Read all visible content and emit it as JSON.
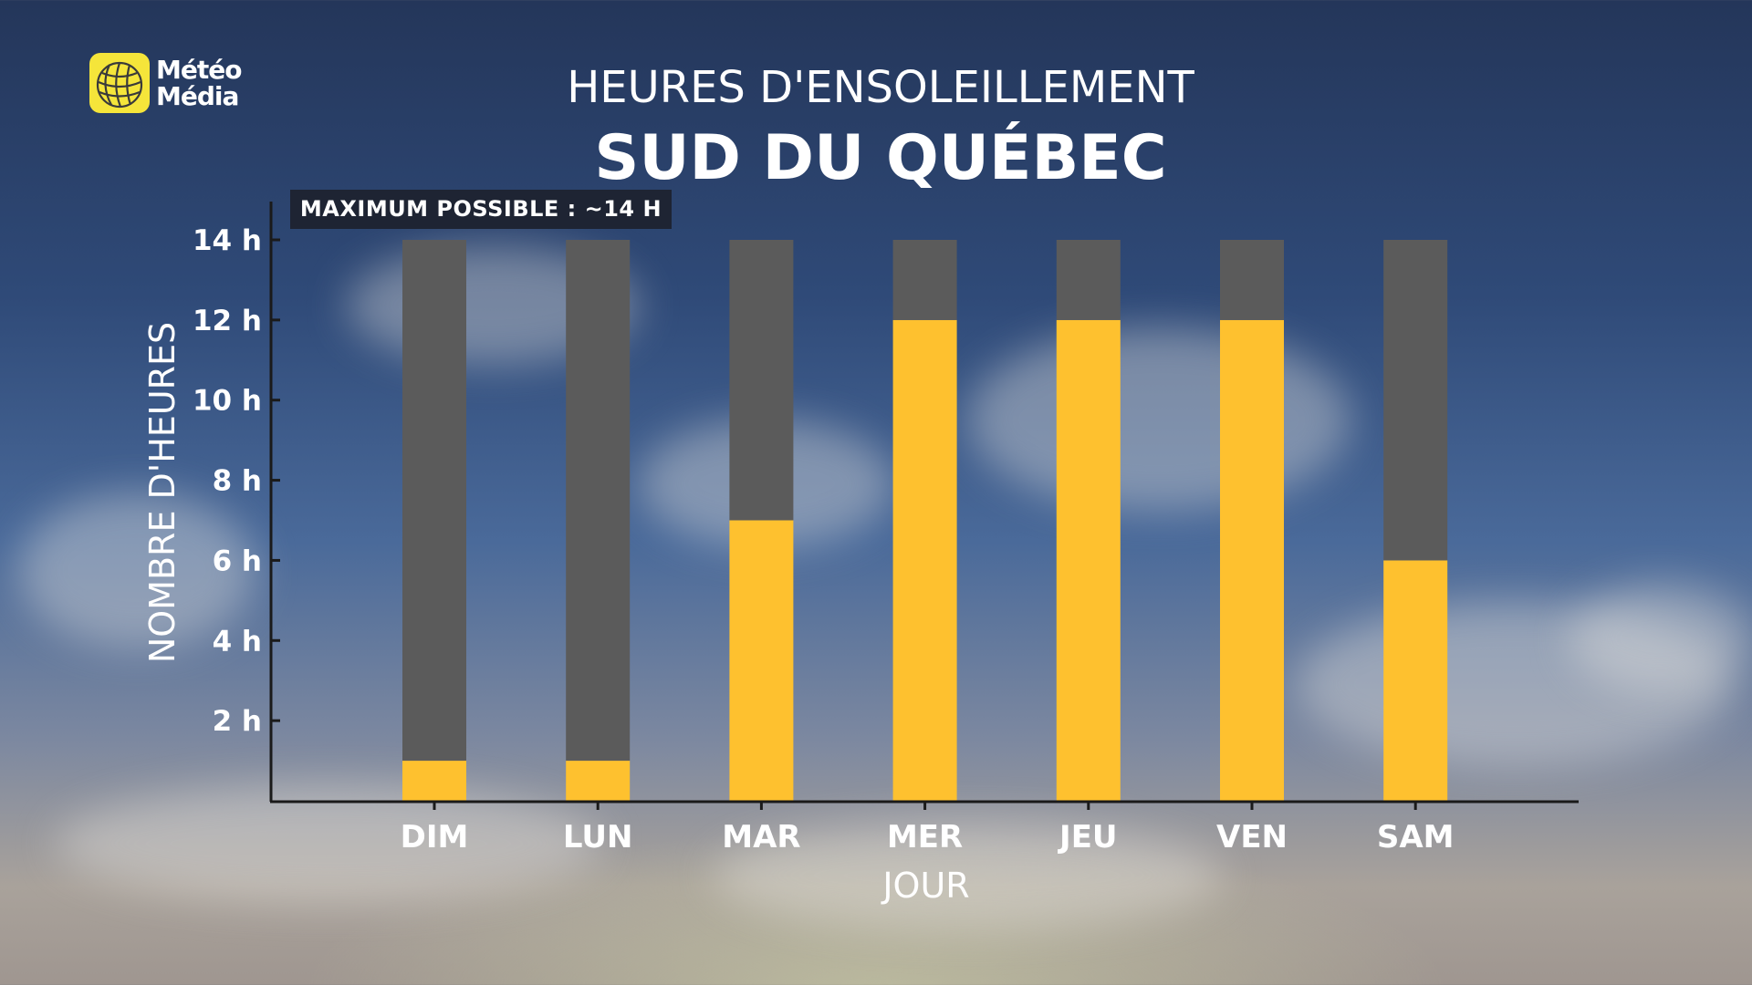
{
  "branding": {
    "line1": "Météo",
    "line2": "Média",
    "logo_color": "#f5e53a",
    "logo_icon": "globe-logo-icon"
  },
  "title": "HEURES D'ENSOLEILLEMENT",
  "subtitle": "SUD DU QUÉBEC",
  "annotation": "MAXIMUM POSSIBLE : ~14 H",
  "chart_data": {
    "type": "bar",
    "stacked": true,
    "title": "HEURES D'ENSOLEILLEMENT",
    "subtitle": "SUD DU QUÉBEC",
    "xlabel": "JOUR",
    "ylabel": "NOMBRE D'HEURES",
    "categories": [
      "DIM",
      "LUN",
      "MAR",
      "MER",
      "JEU",
      "VEN",
      "SAM"
    ],
    "series": [
      {
        "values": [
          1,
          1,
          7,
          12,
          12,
          12,
          6
        ],
        "color": "#fec12f"
      },
      {
        "values": [
          13,
          13,
          7,
          2,
          2,
          2,
          8
        ],
        "color": "#5b5b5b"
      }
    ],
    "ylim": [
      0,
      14
    ],
    "yticks": [
      2,
      4,
      6,
      8,
      10,
      12,
      14
    ],
    "ytick_labels": [
      "2 h",
      "4 h",
      "6 h",
      "8 h",
      "10 h",
      "12 h",
      "14 h"
    ],
    "grid": false,
    "legend": "none"
  }
}
